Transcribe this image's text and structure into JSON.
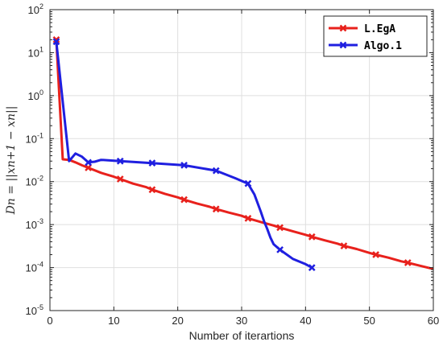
{
  "chart_data": {
    "type": "line",
    "xlabel": "Number of iterartions",
    "ylabel": "D_n = ‖x_{n+1} − x_n‖",
    "ylabel_text": "Dn = ||xn+1 − xn||",
    "xlim": [
      0,
      60
    ],
    "ylim": [
      1e-05,
      100
    ],
    "yscale": "log",
    "grid": true,
    "legend": "top-right",
    "xticks": [
      "0",
      "10",
      "20",
      "30",
      "40",
      "50",
      "60"
    ],
    "yticks": [
      {
        "base": "10",
        "exp": "-5"
      },
      {
        "base": "10",
        "exp": "-4"
      },
      {
        "base": "10",
        "exp": "-3"
      },
      {
        "base": "10",
        "exp": "-2"
      },
      {
        "base": "10",
        "exp": "-1"
      },
      {
        "base": "10",
        "exp": "0"
      },
      {
        "base": "10",
        "exp": "1"
      },
      {
        "base": "10",
        "exp": "2"
      }
    ],
    "series": [
      {
        "name": "L.EgA",
        "color": "#e8211c",
        "x": [
          1,
          2,
          3,
          4,
          5,
          6,
          8,
          10,
          11,
          13,
          15,
          16,
          18,
          20,
          21,
          23,
          25,
          26,
          28,
          30,
          31,
          33,
          35,
          36,
          38,
          40,
          41,
          43,
          45,
          46,
          48,
          50,
          51,
          53,
          55,
          56,
          58,
          60
        ],
        "y": [
          20,
          0.033,
          0.032,
          0.028,
          0.024,
          0.021,
          0.016,
          0.013,
          0.0115,
          0.009,
          0.0075,
          0.0065,
          0.0052,
          0.0043,
          0.0038,
          0.0031,
          0.0026,
          0.0023,
          0.0019,
          0.0016,
          0.0014,
          0.00115,
          0.00095,
          0.00085,
          0.0007,
          0.00058,
          0.00052,
          0.00043,
          0.00036,
          0.00032,
          0.00027,
          0.00022,
          0.0002,
          0.00017,
          0.00014,
          0.00013,
          0.00011,
          9.3e-05
        ],
        "markers_at": [
          1,
          6,
          11,
          16,
          21,
          26,
          31,
          36,
          41,
          46,
          51,
          56
        ]
      },
      {
        "name": "Algo.1",
        "color": "#1f1fe0",
        "x": [
          1,
          3,
          4,
          5,
          6,
          7,
          8,
          11,
          16,
          21,
          26,
          29,
          31,
          32,
          33,
          33.5,
          34,
          34.5,
          35,
          36,
          38,
          40,
          41
        ],
        "y": [
          18,
          0.03,
          0.045,
          0.038,
          0.028,
          0.029,
          0.032,
          0.03,
          0.027,
          0.024,
          0.018,
          0.012,
          0.009,
          0.005,
          0.002,
          0.0012,
          0.0008,
          0.0005,
          0.00035,
          0.00026,
          0.00016,
          0.00012,
          0.0001
        ],
        "markers_at": [
          1,
          6,
          11,
          16,
          21,
          26,
          31,
          36,
          41
        ]
      }
    ]
  }
}
